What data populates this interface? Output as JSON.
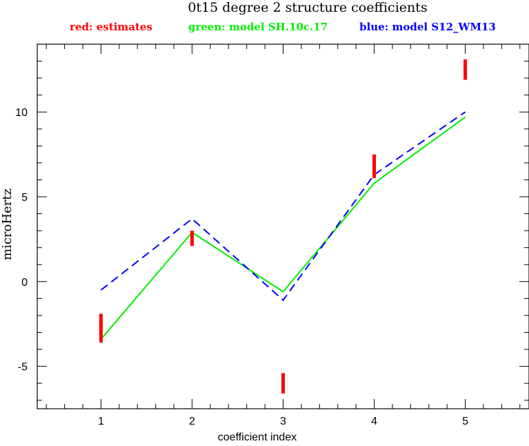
{
  "chart_data": {
    "type": "line",
    "title": "0t15 degree 2 structure coefficients",
    "xlabel": "coefficient index",
    "ylabel": "microHertz",
    "xlim": [
      0.3,
      5.7
    ],
    "ylim": [
      -7.5,
      14
    ],
    "x_ticks": [
      1,
      2,
      3,
      4,
      5
    ],
    "x_tick_labels": [
      "1",
      "2",
      "3",
      "4",
      "5"
    ],
    "y_ticks": [
      -5,
      0,
      5,
      10
    ],
    "y_tick_labels": [
      "-5",
      "0",
      "5",
      "10"
    ],
    "x_minor_step": 0.2,
    "y_minor_step": 1,
    "grid": false,
    "legend": [
      {
        "text": "red: estimates",
        "color": "#ff0000"
      },
      {
        "text": "green: model SH.10c.17",
        "color": "#00ee00"
      },
      {
        "text": "blue: model S12_WM13",
        "color": "#0000ff"
      }
    ],
    "legend_position": "top",
    "estimates": {
      "color": "#ff0000",
      "x": [
        1,
        2,
        3,
        4,
        5
      ],
      "low": [
        -3.6,
        2.1,
        -6.6,
        6.1,
        11.9
      ],
      "high": [
        -1.9,
        3.0,
        -5.4,
        7.5,
        13.1
      ]
    },
    "series": [
      {
        "color": "#00ee00",
        "style": "solid",
        "x": [
          1,
          2,
          3,
          4,
          5
        ],
        "values": [
          -3.4,
          2.9,
          -0.6,
          5.8,
          9.7
        ]
      },
      {
        "color": "#0000ff",
        "style": "dashed",
        "x": [
          1,
          2,
          3,
          4,
          5
        ],
        "values": [
          -0.5,
          3.7,
          -1.1,
          6.3,
          10.0
        ]
      }
    ]
  }
}
